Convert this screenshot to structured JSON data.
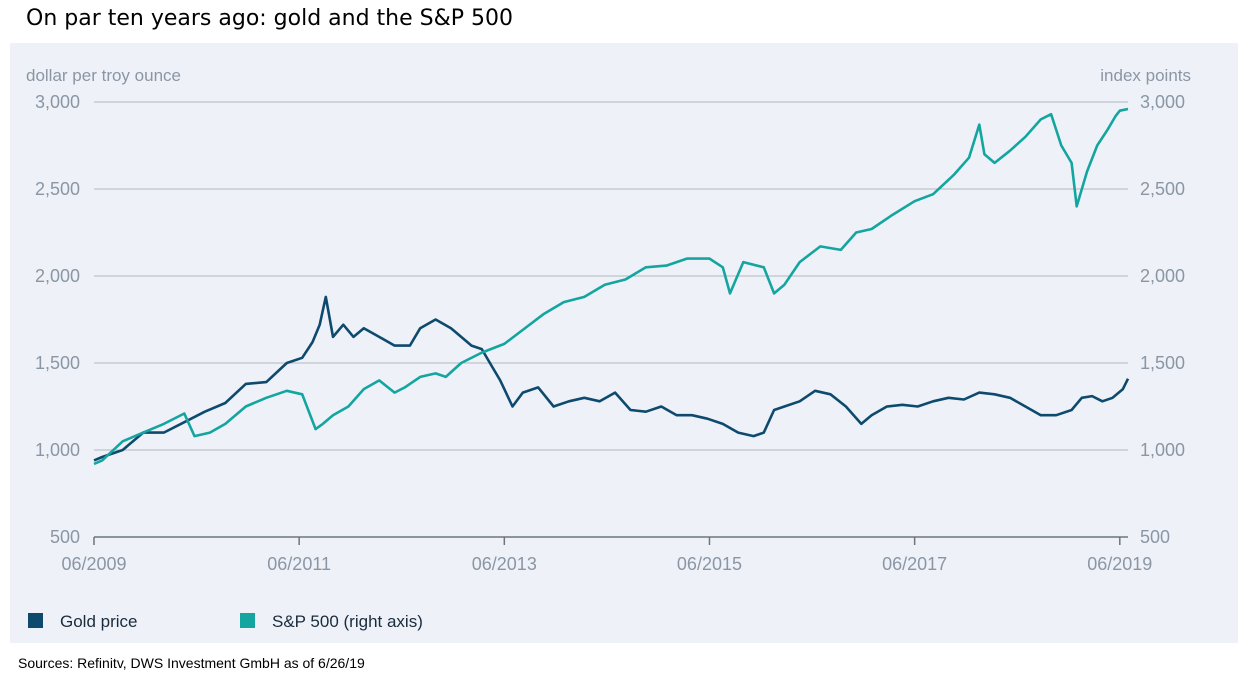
{
  "header": {
    "title": "On par ten years ago: gold and the S&P 500"
  },
  "footer": {
    "source": "Sources: Refinitv, DWS Investment GmbH as of 6/26/19"
  },
  "chart_data": {
    "type": "line",
    "title": "On par ten years ago: gold and the S&P 500",
    "y_left_label": "dollar per troy ounce",
    "y_right_label": "index points",
    "ylim": [
      500,
      3000
    ],
    "yticks": [
      500,
      1000,
      1500,
      2000,
      2500,
      3000
    ],
    "ytick_labels": [
      "500",
      "1,000",
      "1,500",
      "2,000",
      "2,500",
      "3,000"
    ],
    "xlim": [
      2009.42,
      2019.5
    ],
    "xticks": [
      2009.42,
      2011.42,
      2013.42,
      2015.42,
      2017.42,
      2019.42
    ],
    "xtick_labels": [
      "06/2009",
      "06/2011",
      "06/2013",
      "06/2015",
      "06/2017",
      "06/2019"
    ],
    "grid": "horizontal",
    "legend": "bottom-left",
    "series": [
      {
        "name": "Gold price",
        "axis": "left",
        "color": "#0e4a6e",
        "x": [
          2009.42,
          2009.5,
          2009.7,
          2009.9,
          2010.1,
          2010.3,
          2010.5,
          2010.7,
          2010.9,
          2011.1,
          2011.3,
          2011.45,
          2011.55,
          2011.62,
          2011.68,
          2011.75,
          2011.85,
          2011.95,
          2012.05,
          2012.2,
          2012.35,
          2012.5,
          2012.6,
          2012.75,
          2012.9,
          2013.0,
          2013.1,
          2013.2,
          2013.3,
          2013.38,
          2013.42,
          2013.5,
          2013.6,
          2013.75,
          2013.9,
          2014.05,
          2014.2,
          2014.35,
          2014.5,
          2014.65,
          2014.8,
          2014.95,
          2015.1,
          2015.25,
          2015.4,
          2015.55,
          2015.7,
          2015.85,
          2015.95,
          2016.05,
          2016.15,
          2016.3,
          2016.45,
          2016.6,
          2016.75,
          2016.9,
          2017.0,
          2017.15,
          2017.3,
          2017.45,
          2017.6,
          2017.75,
          2017.9,
          2018.05,
          2018.2,
          2018.35,
          2018.5,
          2018.65,
          2018.8,
          2018.95,
          2019.05,
          2019.15,
          2019.25,
          2019.35,
          2019.45,
          2019.5
        ],
        "y": [
          940,
          960,
          1000,
          1100,
          1100,
          1160,
          1220,
          1270,
          1380,
          1390,
          1500,
          1530,
          1620,
          1720,
          1880,
          1650,
          1720,
          1650,
          1700,
          1650,
          1600,
          1600,
          1700,
          1750,
          1700,
          1650,
          1600,
          1580,
          1480,
          1400,
          1350,
          1250,
          1330,
          1360,
          1250,
          1280,
          1300,
          1280,
          1330,
          1230,
          1220,
          1250,
          1200,
          1200,
          1180,
          1150,
          1100,
          1080,
          1100,
          1230,
          1250,
          1280,
          1340,
          1320,
          1250,
          1150,
          1200,
          1250,
          1260,
          1250,
          1280,
          1300,
          1290,
          1330,
          1320,
          1300,
          1250,
          1200,
          1200,
          1230,
          1300,
          1310,
          1280,
          1300,
          1350,
          1410
        ]
      },
      {
        "name": "S&P 500 (right axis)",
        "axis": "right",
        "color": "#14a5a0",
        "x": [
          2009.42,
          2009.5,
          2009.7,
          2009.9,
          2010.1,
          2010.3,
          2010.4,
          2010.55,
          2010.7,
          2010.9,
          2011.1,
          2011.3,
          2011.45,
          2011.58,
          2011.65,
          2011.75,
          2011.9,
          2012.05,
          2012.2,
          2012.35,
          2012.45,
          2012.6,
          2012.75,
          2012.85,
          2013.0,
          2013.2,
          2013.42,
          2013.6,
          2013.8,
          2014.0,
          2014.2,
          2014.4,
          2014.6,
          2014.8,
          2015.0,
          2015.2,
          2015.42,
          2015.55,
          2015.62,
          2015.75,
          2015.95,
          2016.05,
          2016.15,
          2016.3,
          2016.5,
          2016.7,
          2016.85,
          2017.0,
          2017.2,
          2017.42,
          2017.6,
          2017.8,
          2017.95,
          2018.05,
          2018.1,
          2018.2,
          2018.35,
          2018.5,
          2018.65,
          2018.75,
          2018.85,
          2018.95,
          2019.0,
          2019.1,
          2019.2,
          2019.3,
          2019.38,
          2019.42,
          2019.5
        ],
        "y": [
          920,
          940,
          1050,
          1100,
          1150,
          1210,
          1080,
          1100,
          1150,
          1250,
          1300,
          1340,
          1320,
          1120,
          1150,
          1200,
          1250,
          1350,
          1400,
          1330,
          1360,
          1420,
          1440,
          1420,
          1500,
          1560,
          1610,
          1690,
          1780,
          1850,
          1880,
          1950,
          1980,
          2050,
          2060,
          2100,
          2100,
          2050,
          1900,
          2080,
          2050,
          1900,
          1950,
          2080,
          2170,
          2150,
          2250,
          2270,
          2350,
          2430,
          2470,
          2580,
          2680,
          2870,
          2700,
          2650,
          2720,
          2800,
          2900,
          2930,
          2750,
          2650,
          2400,
          2600,
          2750,
          2840,
          2920,
          2950,
          2960
        ]
      }
    ]
  }
}
